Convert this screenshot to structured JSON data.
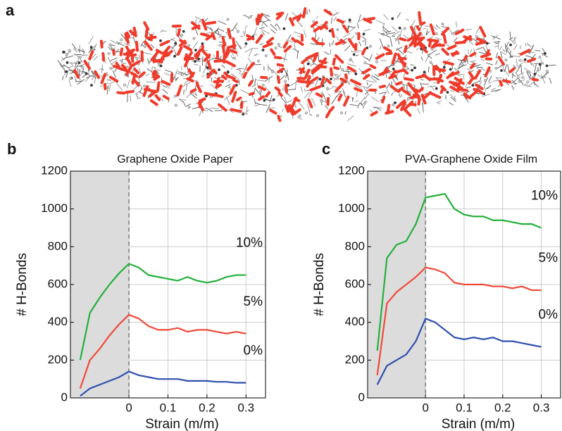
{
  "panel_a": {
    "label": "a"
  },
  "chart_data": [
    {
      "type": "line",
      "label": "b",
      "title": "Graphene Oxide Paper",
      "xlabel": "Strain (m/m)",
      "ylabel": "# H-Bonds",
      "xlim": [
        -0.15,
        0.35
      ],
      "ylim": [
        0,
        1200
      ],
      "xticks": [
        0,
        0.1,
        0.2,
        0.3
      ],
      "yticks": [
        0,
        200,
        400,
        600,
        800,
        1000,
        1200
      ],
      "grid": true,
      "shade": [
        -0.15,
        0
      ],
      "x": [
        -0.125,
        -0.1,
        -0.075,
        -0.05,
        -0.025,
        0,
        0.025,
        0.05,
        0.075,
        0.1,
        0.125,
        0.15,
        0.175,
        0.2,
        0.225,
        0.25,
        0.275,
        0.3
      ],
      "series": [
        {
          "name": "10%",
          "color": "#22b03a",
          "values": [
            200,
            450,
            530,
            600,
            660,
            710,
            690,
            650,
            640,
            630,
            620,
            640,
            620,
            610,
            620,
            640,
            650,
            650
          ]
        },
        {
          "name": "5%",
          "color": "#f04a3a",
          "values": [
            50,
            200,
            260,
            330,
            390,
            440,
            420,
            380,
            360,
            360,
            370,
            350,
            360,
            360,
            350,
            340,
            350,
            340
          ]
        },
        {
          "name": "0%",
          "color": "#2f4fb0",
          "values": [
            10,
            50,
            70,
            90,
            110,
            140,
            120,
            110,
            100,
            100,
            100,
            90,
            90,
            90,
            85,
            85,
            80,
            80
          ]
        }
      ]
    },
    {
      "type": "line",
      "label": "c",
      "title": "PVA-Graphene Oxide Film",
      "xlabel": "Strain (m/m)",
      "ylabel": "# H-Bonds",
      "xlim": [
        -0.15,
        0.35
      ],
      "ylim": [
        0,
        1200
      ],
      "xticks": [
        0,
        0.1,
        0.2,
        0.3
      ],
      "yticks": [
        0,
        200,
        400,
        600,
        800,
        1000,
        1200
      ],
      "grid": true,
      "shade": [
        -0.15,
        0
      ],
      "x": [
        -0.125,
        -0.1,
        -0.075,
        -0.05,
        -0.025,
        0,
        0.025,
        0.05,
        0.075,
        0.1,
        0.125,
        0.15,
        0.175,
        0.2,
        0.225,
        0.25,
        0.275,
        0.3
      ],
      "series": [
        {
          "name": "10%",
          "color": "#22b03a",
          "values": [
            250,
            740,
            810,
            830,
            920,
            1060,
            1070,
            1080,
            1000,
            970,
            960,
            960,
            940,
            940,
            930,
            920,
            920,
            900
          ]
        },
        {
          "name": "5%",
          "color": "#f04a3a",
          "values": [
            120,
            500,
            560,
            600,
            640,
            690,
            680,
            660,
            610,
            600,
            600,
            600,
            590,
            590,
            580,
            590,
            570,
            570
          ]
        },
        {
          "name": "0%",
          "color": "#2f4fb0",
          "values": [
            70,
            170,
            200,
            230,
            300,
            420,
            400,
            360,
            320,
            310,
            320,
            310,
            320,
            300,
            300,
            290,
            280,
            270
          ]
        }
      ]
    }
  ]
}
